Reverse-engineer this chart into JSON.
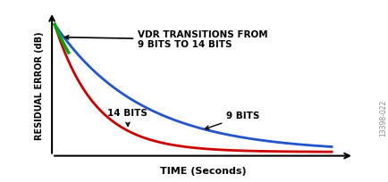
{
  "xlabel": "TIME (Seconds)",
  "ylabel": "RESIDUAL ERROR (dB)",
  "background_color": "#ffffff",
  "curve_9bit_color": "#2255cc",
  "curve_14bit_color": "#cc0000",
  "curve_green_color": "#00aa00",
  "annotation_vdr": "VDR TRANSITIONS FROM\n9 BITS TO 14 BITS",
  "annotation_9bit": "9 BITS",
  "annotation_14bit": "14 BITS",
  "watermark": "13398-022",
  "xlabel_fontsize": 8,
  "ylabel_fontsize": 7,
  "annotation_fontsize": 7.5
}
